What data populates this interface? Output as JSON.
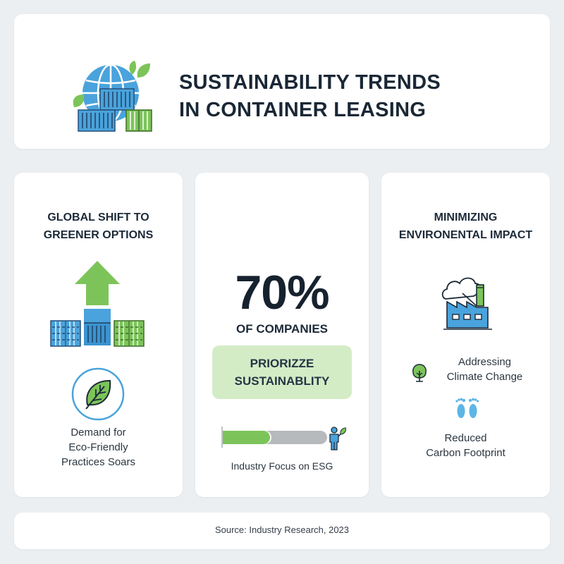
{
  "header": {
    "title_lines": [
      "SUSTAINABILITY TRENDS",
      "IN CONTAINER LEASING"
    ],
    "icon": "globe-with-containers-and-leaves-icon"
  },
  "columns": [
    {
      "heading_lines": [
        "GLOBAL SHIFT TO",
        "GREENER OPTIONS"
      ],
      "illustration": "green-arrow-up-over-containers-icon",
      "badge_icon": "leaf-circle-icon",
      "caption_lines": [
        "Demand for",
        "Eco-Friendly",
        "Practices Soars"
      ]
    },
    {
      "stat_value": "70%",
      "stat_subject": "OF COMPANIES",
      "highlight_lines": [
        "PRIORIZZE",
        "SUSTAINABLITY"
      ],
      "progress": {
        "percent": 45,
        "icon": "person-with-leaf-icon",
        "label": "Industry Focus on ESG"
      }
    },
    {
      "heading_lines": [
        "MINIMIZING",
        "ENVIRONENTAL IMPACT"
      ],
      "illustration": "factory-with-cloud-icon",
      "items": [
        {
          "icon": "tree-icon",
          "lines": [
            "Addressing",
            "Climate Change"
          ]
        },
        {
          "icon": "footprints-icon",
          "lines": [
            "Reduced",
            "Carbon Footprint"
          ]
        }
      ]
    }
  ],
  "footer": {
    "source": "Source: Industry Research, 2023"
  },
  "colors": {
    "background": "#eceff1",
    "card": "#ffffff",
    "text_dark": "#1c2a38",
    "brand_green": "#7cc45a",
    "brand_blue": "#4aa3dc",
    "highlight_bg": "#d4ecc6",
    "progress_track": "#b7babd"
  }
}
